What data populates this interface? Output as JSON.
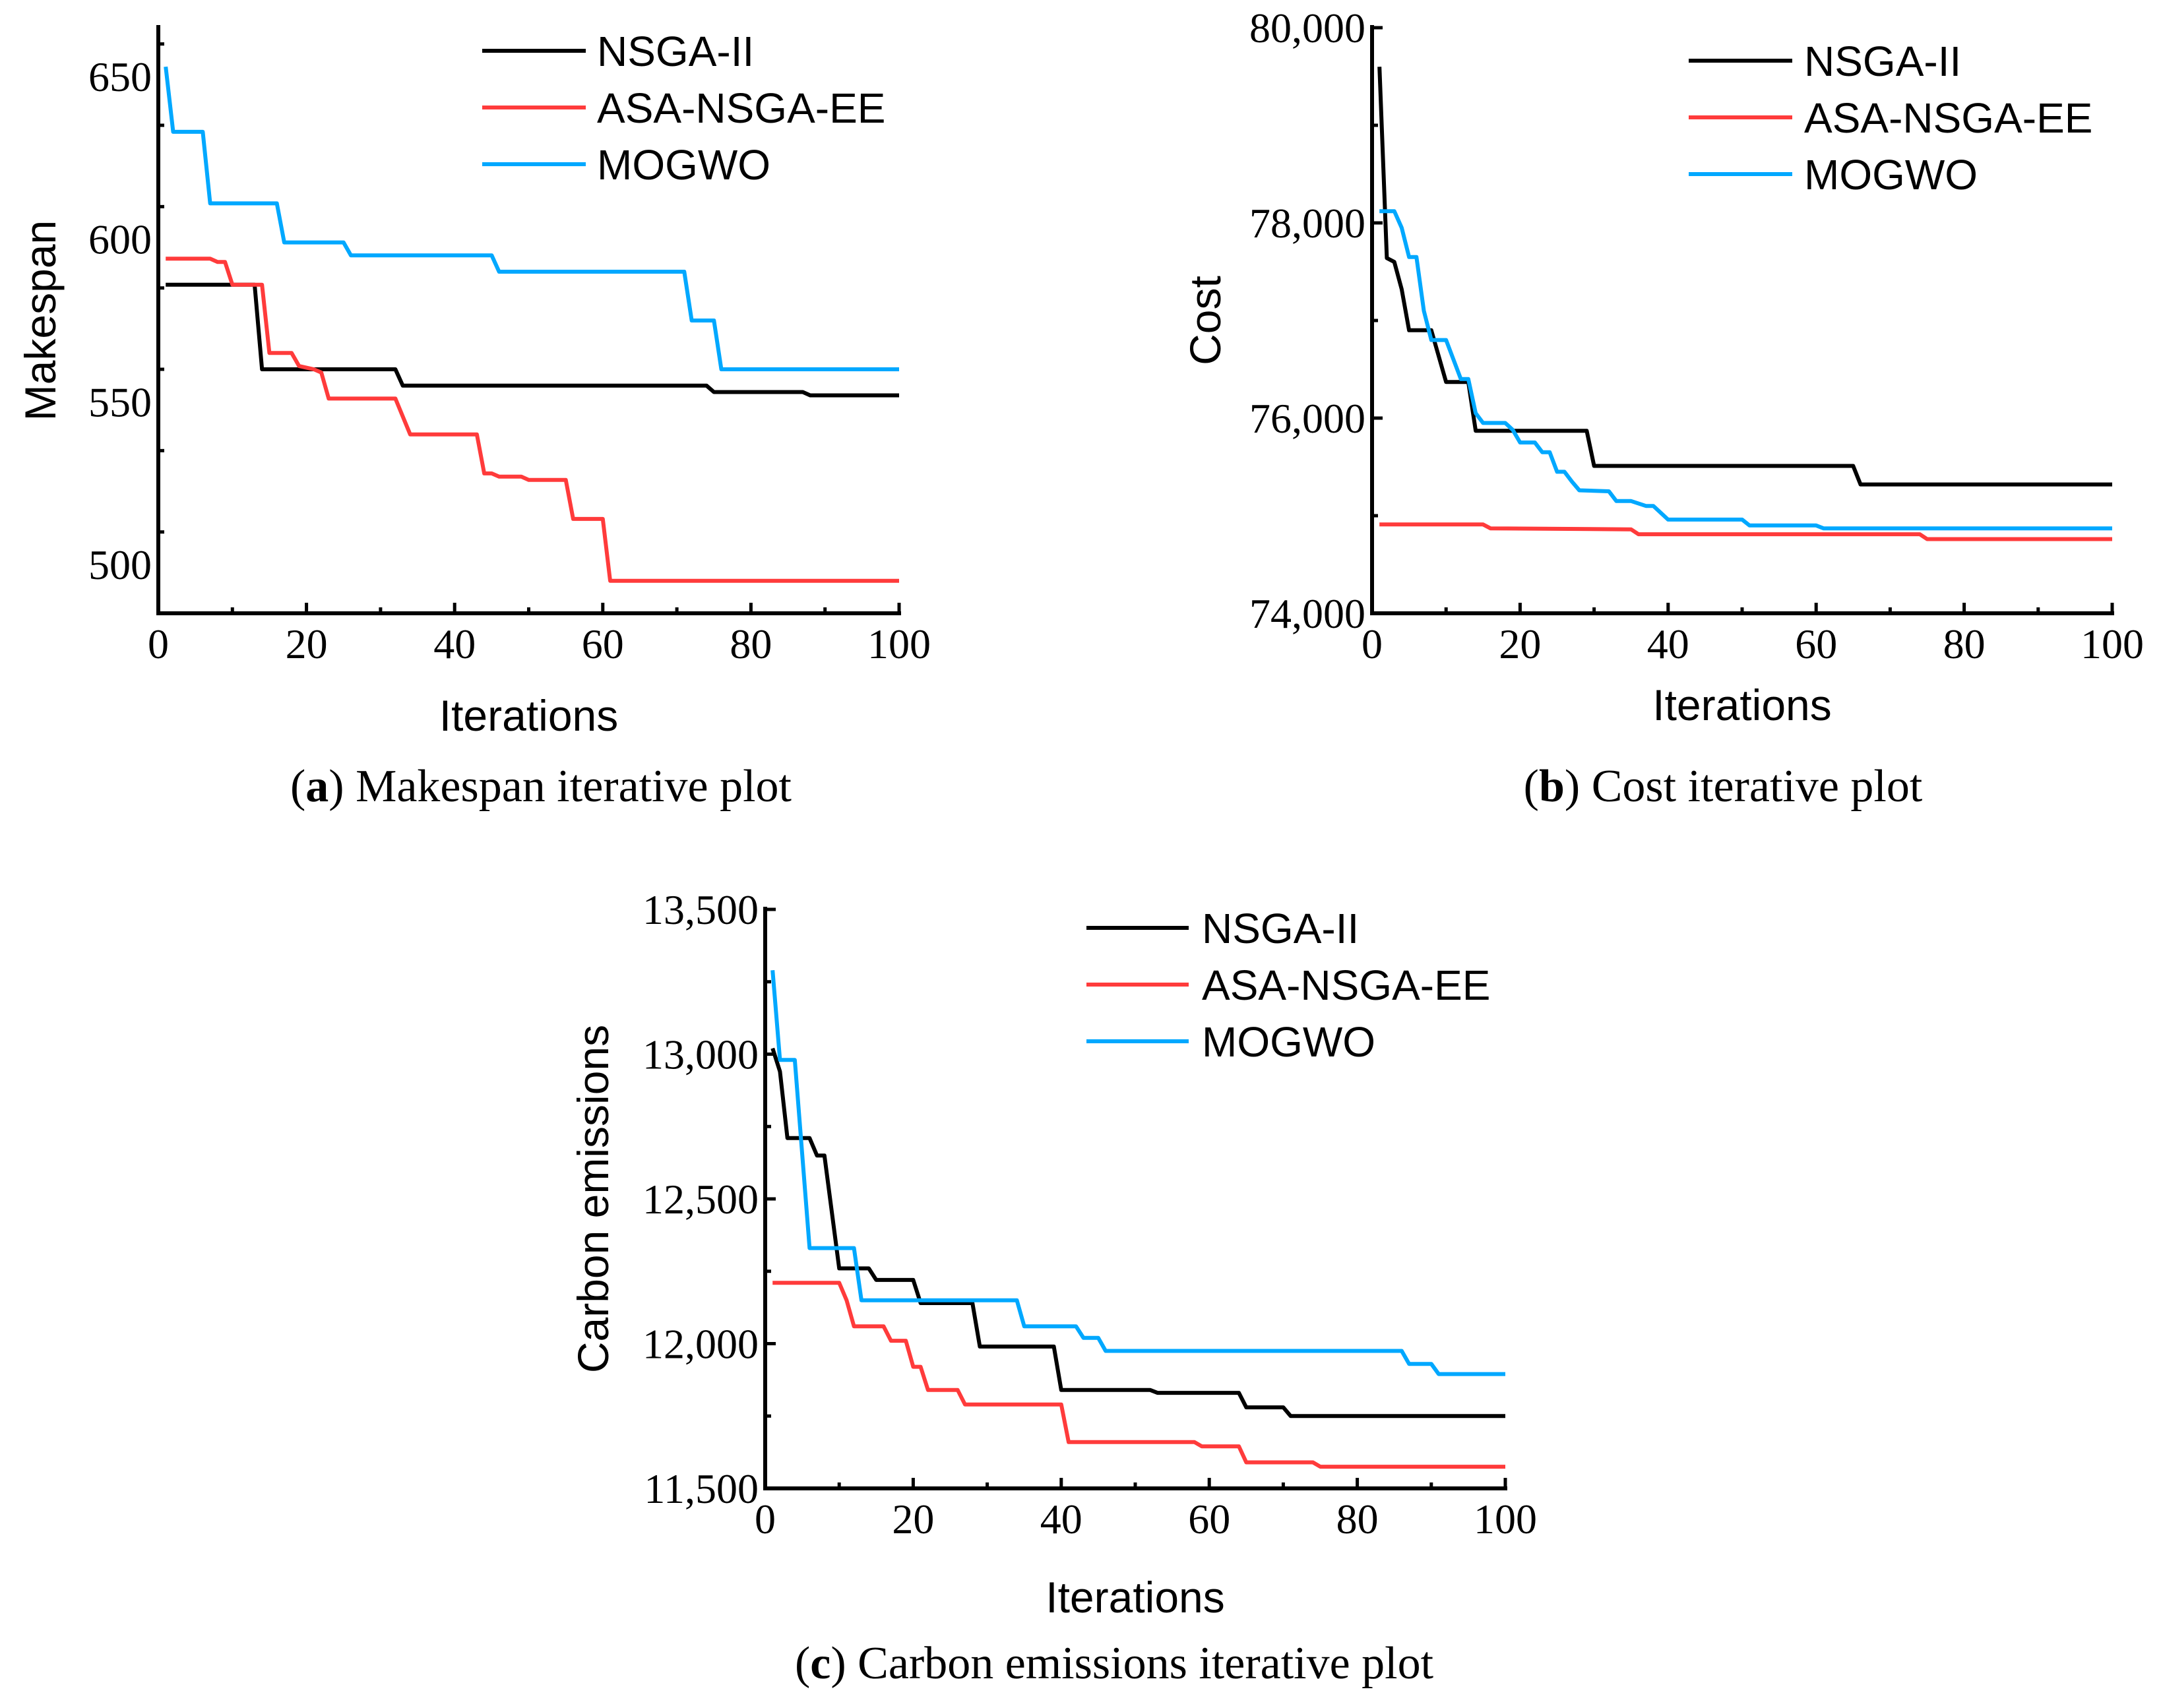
{
  "colors": {
    "NSGA-II": "#000000",
    "ASA-NSGA-EE": "#ff3b3b",
    "MOGWO": "#00a8ff"
  },
  "chart_data": [
    {
      "id": "a",
      "type": "line",
      "caption_label": "a",
      "caption_text": "Makespan iterative plot",
      "xlabel": "Iterations",
      "ylabel": "Makespan",
      "xlim": [
        0,
        100
      ],
      "ylim": [
        485,
        665
      ],
      "xticks": [
        0,
        20,
        40,
        60,
        80,
        100
      ],
      "xtick_labels": [
        "0",
        "20",
        "40",
        "60",
        "80",
        "100"
      ],
      "yticks": [
        500,
        550,
        600,
        650
      ],
      "ytick_labels": [
        "500",
        "550",
        "600",
        "650"
      ],
      "x_minor_step": 10,
      "y_minor_step": 25,
      "legend_position": "top-right",
      "series": [
        {
          "name": "NSGA-II",
          "steps": [
            [
              1,
              586
            ],
            [
              13,
              586
            ],
            [
              14,
              560
            ],
            [
              32,
              560
            ],
            [
              33,
              555
            ],
            [
              74,
              555
            ],
            [
              75,
              553
            ],
            [
              87,
              553
            ],
            [
              88,
              552
            ],
            [
              100,
              552
            ]
          ]
        },
        {
          "name": "ASA-NSGA-EE",
          "steps": [
            [
              1,
              594
            ],
            [
              7,
              594
            ],
            [
              8,
              593
            ],
            [
              9,
              593
            ],
            [
              10,
              586
            ],
            [
              14,
              586
            ],
            [
              15,
              565
            ],
            [
              18,
              565
            ],
            [
              19,
              561
            ],
            [
              21,
              560
            ],
            [
              22,
              559
            ],
            [
              23,
              551
            ],
            [
              32,
              551
            ],
            [
              34,
              540
            ],
            [
              43,
              540
            ],
            [
              44,
              528
            ],
            [
              45,
              528
            ],
            [
              46,
              527
            ],
            [
              49,
              527
            ],
            [
              50,
              526
            ],
            [
              55,
              526
            ],
            [
              56,
              514
            ],
            [
              60,
              514
            ],
            [
              61,
              495
            ],
            [
              100,
              495
            ]
          ]
        },
        {
          "name": "MOGWO",
          "steps": [
            [
              1,
              653
            ],
            [
              2,
              633
            ],
            [
              6,
              633
            ],
            [
              7,
              611
            ],
            [
              16,
              611
            ],
            [
              17,
              599
            ],
            [
              25,
              599
            ],
            [
              26,
              595
            ],
            [
              45,
              595
            ],
            [
              46,
              590
            ],
            [
              71,
              590
            ],
            [
              72,
              575
            ],
            [
              75,
              575
            ],
            [
              76,
              560
            ],
            [
              100,
              560
            ]
          ]
        }
      ]
    },
    {
      "id": "b",
      "type": "line",
      "caption_label": "b",
      "caption_text": "Cost iterative plot",
      "xlabel": "Iterations",
      "ylabel": "Cost",
      "xlim": [
        0,
        100
      ],
      "ylim": [
        74000,
        80000
      ],
      "xticks": [
        0,
        20,
        40,
        60,
        80,
        100
      ],
      "xtick_labels": [
        "0",
        "20",
        "40",
        "60",
        "80",
        "100"
      ],
      "yticks": [
        74000,
        76000,
        78000,
        80000
      ],
      "ytick_labels": [
        "74,000",
        "76,000",
        "78,000",
        "80,000"
      ],
      "x_minor_step": 10,
      "y_minor_step": 1000,
      "legend_position": "top-right",
      "series": [
        {
          "name": "NSGA-II",
          "steps": [
            [
              1,
              79600
            ],
            [
              2,
              77640
            ],
            [
              3,
              77600
            ],
            [
              4,
              77320
            ],
            [
              5,
              76900
            ],
            [
              8,
              76900
            ],
            [
              10,
              76370
            ],
            [
              13,
              76370
            ],
            [
              14,
              75870
            ],
            [
              29,
              75870
            ],
            [
              30,
              75510
            ],
            [
              65,
              75510
            ],
            [
              66,
              75320
            ],
            [
              100,
              75320
            ]
          ]
        },
        {
          "name": "ASA-NSGA-EE",
          "steps": [
            [
              1,
              74910
            ],
            [
              15,
              74910
            ],
            [
              16,
              74870
            ],
            [
              35,
              74860
            ],
            [
              36,
              74810
            ],
            [
              74,
              74810
            ],
            [
              75,
              74760
            ],
            [
              100,
              74760
            ]
          ]
        },
        {
          "name": "MOGWO",
          "steps": [
            [
              1,
              78120
            ],
            [
              3,
              78120
            ],
            [
              4,
              77950
            ],
            [
              5,
              77650
            ],
            [
              6,
              77650
            ],
            [
              7,
              77100
            ],
            [
              8,
              76800
            ],
            [
              10,
              76800
            ],
            [
              11,
              76600
            ],
            [
              12,
              76400
            ],
            [
              13,
              76400
            ],
            [
              14,
              76050
            ],
            [
              15,
              75950
            ],
            [
              18,
              75950
            ],
            [
              19,
              75880
            ],
            [
              20,
              75750
            ],
            [
              22,
              75750
            ],
            [
              23,
              75650
            ],
            [
              24,
              75650
            ],
            [
              25,
              75450
            ],
            [
              26,
              75450
            ],
            [
              27,
              75350
            ],
            [
              28,
              75260
            ],
            [
              32,
              75250
            ],
            [
              33,
              75150
            ],
            [
              35,
              75150
            ],
            [
              37,
              75100
            ],
            [
              38,
              75100
            ],
            [
              40,
              74960
            ],
            [
              50,
              74960
            ],
            [
              51,
              74900
            ],
            [
              60,
              74900
            ],
            [
              61,
              74870
            ],
            [
              100,
              74870
            ]
          ]
        }
      ]
    },
    {
      "id": "c",
      "type": "line",
      "caption_label": "c",
      "caption_text": "Carbon emissions iterative plot",
      "xlabel": "Iterations",
      "ylabel": "Carbon emissions",
      "xlim": [
        0,
        100
      ],
      "ylim": [
        11500,
        13500
      ],
      "xticks": [
        0,
        20,
        40,
        60,
        80,
        100
      ],
      "xtick_labels": [
        "0",
        "20",
        "40",
        "60",
        "80",
        "100"
      ],
      "yticks": [
        11500,
        12000,
        12500,
        13000,
        13500
      ],
      "ytick_labels": [
        "11,500",
        "12,000",
        "12,500",
        "13,000",
        "13,500"
      ],
      "x_minor_step": 10,
      "y_minor_step": 250,
      "legend_position": "top-right",
      "series": [
        {
          "name": "NSGA-II",
          "steps": [
            [
              1,
              13020
            ],
            [
              2,
              12940
            ],
            [
              3,
              12710
            ],
            [
              6,
              12710
            ],
            [
              7,
              12650
            ],
            [
              8,
              12650
            ],
            [
              10,
              12260
            ],
            [
              14,
              12260
            ],
            [
              15,
              12220
            ],
            [
              20,
              12220
            ],
            [
              21,
              12140
            ],
            [
              28,
              12140
            ],
            [
              29,
              11990
            ],
            [
              39,
              11990
            ],
            [
              40,
              11840
            ],
            [
              52,
              11840
            ],
            [
              53,
              11830
            ],
            [
              64,
              11830
            ],
            [
              65,
              11780
            ],
            [
              70,
              11780
            ],
            [
              71,
              11750
            ],
            [
              100,
              11750
            ]
          ]
        },
        {
          "name": "ASA-NSGA-EE",
          "steps": [
            [
              1,
              12210
            ],
            [
              10,
              12210
            ],
            [
              11,
              12150
            ],
            [
              12,
              12060
            ],
            [
              16,
              12060
            ],
            [
              17,
              12010
            ],
            [
              19,
              12010
            ],
            [
              20,
              11920
            ],
            [
              21,
              11920
            ],
            [
              22,
              11840
            ],
            [
              26,
              11840
            ],
            [
              27,
              11790
            ],
            [
              40,
              11790
            ],
            [
              41,
              11660
            ],
            [
              58,
              11660
            ],
            [
              59,
              11645
            ],
            [
              64,
              11645
            ],
            [
              65,
              11590
            ],
            [
              74,
              11590
            ],
            [
              75,
              11575
            ],
            [
              100,
              11575
            ]
          ]
        },
        {
          "name": "MOGWO",
          "steps": [
            [
              1,
              13290
            ],
            [
              2,
              12980
            ],
            [
              4,
              12980
            ],
            [
              6,
              12330
            ],
            [
              12,
              12330
            ],
            [
              13,
              12150
            ],
            [
              34,
              12150
            ],
            [
              35,
              12060
            ],
            [
              42,
              12060
            ],
            [
              43,
              12020
            ],
            [
              45,
              12020
            ],
            [
              46,
              11975
            ],
            [
              86,
              11975
            ],
            [
              87,
              11930
            ],
            [
              90,
              11930
            ],
            [
              91,
              11895
            ],
            [
              100,
              11895
            ]
          ]
        }
      ]
    }
  ]
}
